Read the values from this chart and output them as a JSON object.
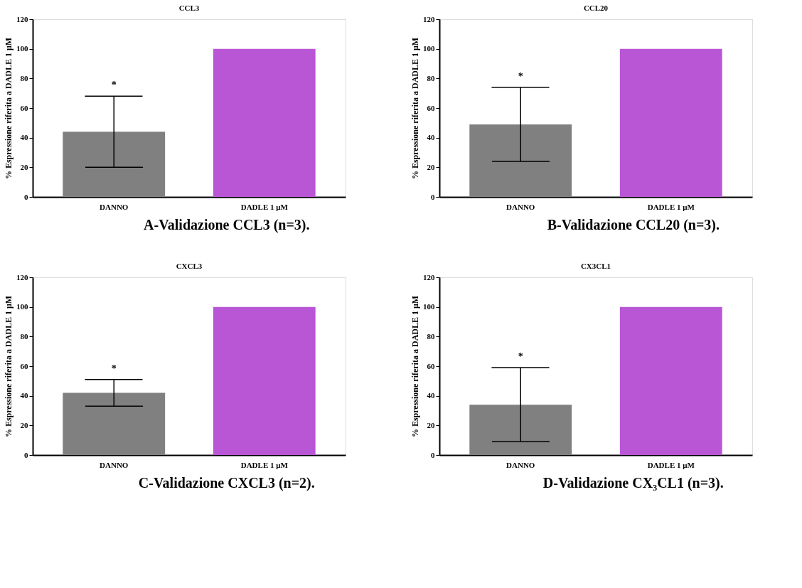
{
  "chart_data": [
    {
      "type": "bar",
      "title": "CCL3",
      "ylabel": "% Espressione riferita a DADLE 1 μM",
      "categories": [
        "DANNO",
        "DADLE 1 μM"
      ],
      "values": [
        44,
        100
      ],
      "colors": [
        "#808080",
        "#b956d6"
      ],
      "errors": [
        24,
        null
      ],
      "ylim": [
        0,
        120
      ],
      "yticks": [
        0,
        20,
        40,
        60,
        80,
        100,
        120
      ],
      "grid": false,
      "annotations": [
        "*",
        "A-Validazione CCL3 (n=3)."
      ]
    },
    {
      "type": "bar",
      "title": "CCL20",
      "ylabel": "% Espressione riferita a DADLE 1 μM",
      "categories": [
        "DANNO",
        "DADLE 1 μM"
      ],
      "values": [
        49,
        100
      ],
      "colors": [
        "#808080",
        "#b956d6"
      ],
      "errors": [
        25,
        null
      ],
      "ylim": [
        0,
        120
      ],
      "yticks": [
        0,
        20,
        40,
        60,
        80,
        100,
        120
      ],
      "grid": false,
      "annotations": [
        "*",
        "B-Validazione CCL20 (n=3)."
      ]
    },
    {
      "type": "bar",
      "title": "CXCL3",
      "ylabel": "% Espressione riferita a DADLE 1 μM",
      "categories": [
        "DANNO",
        "DADLE 1 μM"
      ],
      "values": [
        42,
        100
      ],
      "colors": [
        "#808080",
        "#b956d6"
      ],
      "errors": [
        9,
        null
      ],
      "ylim": [
        0,
        120
      ],
      "yticks": [
        0,
        20,
        40,
        60,
        80,
        100,
        120
      ],
      "grid": false,
      "annotations": [
        "*",
        "C-Validazione CXCL3 (n=2)."
      ]
    },
    {
      "type": "bar",
      "title": "CX3CL1",
      "ylabel": "% Espressione riferita a DADLE 1 μM",
      "categories": [
        "DANNO",
        "DADLE 1 μM"
      ],
      "values": [
        34,
        100
      ],
      "colors": [
        "#808080",
        "#b956d6"
      ],
      "errors": [
        25,
        null
      ],
      "ylim": [
        0,
        120
      ],
      "yticks": [
        0,
        20,
        40,
        60,
        80,
        100,
        120
      ],
      "grid": false,
      "annotations": [
        "*",
        "D-Validazione CX₃CL1 (n=3)."
      ]
    }
  ]
}
